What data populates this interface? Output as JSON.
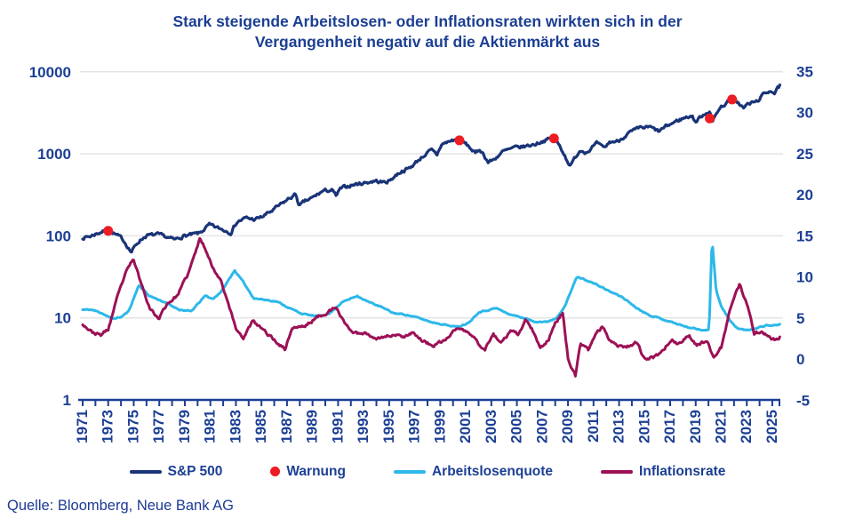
{
  "title": {
    "line1": "Stark steigende Arbeitslosen- oder Inflationsraten wirkten sich in der",
    "line2": "Vergangenheit negativ auf die Aktienmärkt aus"
  },
  "source": "Quelle: Bloomberg, Neue Bank AG",
  "colors": {
    "navy_text": "#1c3f94",
    "sp500_line": "#1a3478",
    "unemployment_line": "#2db8e9",
    "inflation_line": "#9c1156",
    "warning_dot": "#ee1c23",
    "gridline": "#e4e4e4"
  },
  "legend": {
    "items": [
      {
        "label": "S&P 500",
        "marker": "line",
        "color": "#1a3478"
      },
      {
        "label": "Warnung",
        "marker": "dot",
        "color": "#ee1c23"
      },
      {
        "label": "Arbeitslosenquote",
        "marker": "line",
        "color": "#2db8e9"
      },
      {
        "label": "Inflationsrate",
        "marker": "line",
        "color": "#9c1156"
      }
    ]
  },
  "chart_data": {
    "type": "line",
    "title": "Stark steigende Arbeitslosen- oder Inflationsraten wirkten sich in der Vergangenheit negativ auf die Aktienmärkt aus",
    "grid": "horizontal-on",
    "legend_position": "bottom",
    "left_axis": {
      "scale": "log",
      "ticks": [
        1,
        10,
        100,
        1000,
        10000
      ],
      "range": [
        1,
        10000
      ],
      "series": "S&P 500"
    },
    "right_axis": {
      "scale": "linear",
      "ticks": [
        -5,
        0,
        5,
        10,
        15,
        20,
        25,
        30,
        35
      ],
      "range": [
        -5,
        35
      ],
      "series": "Arbeitslosenquote / Inflationsrate (%)"
    },
    "x_axis": {
      "range": [
        1971,
        2025.6
      ],
      "minor_tick_every_years": 1,
      "labels": [
        "1971",
        "1973",
        "1975",
        "1977",
        "1979",
        "1981",
        "1983",
        "1985",
        "1987",
        "1989",
        "1991",
        "1993",
        "1995",
        "1997",
        "1999",
        "2001",
        "2003",
        "2005",
        "2007",
        "2009",
        "2011",
        "2013",
        "2015",
        "2017",
        "2019",
        "2021",
        "2023",
        "2025"
      ]
    },
    "series": [
      {
        "name": "S&P 500",
        "axis": "left-log",
        "color": "#1a3478",
        "points": [
          [
            1971.0,
            95
          ],
          [
            1971.6,
            99
          ],
          [
            1972.1,
            107
          ],
          [
            1972.95,
            118
          ],
          [
            1973.6,
            103
          ],
          [
            1974.1,
            92
          ],
          [
            1974.8,
            63
          ],
          [
            1975.4,
            86
          ],
          [
            1976.0,
            101
          ],
          [
            1976.9,
            103
          ],
          [
            1977.6,
            96
          ],
          [
            1978.2,
            89
          ],
          [
            1978.9,
            100
          ],
          [
            1979.6,
            103
          ],
          [
            1980.2,
            108
          ],
          [
            1980.9,
            135
          ],
          [
            1981.6,
            124
          ],
          [
            1982.6,
            110
          ],
          [
            1983.1,
            148
          ],
          [
            1983.8,
            165
          ],
          [
            1984.5,
            158
          ],
          [
            1985.1,
            172
          ],
          [
            1985.9,
            205
          ],
          [
            1986.6,
            245
          ],
          [
            1987.1,
            280
          ],
          [
            1987.7,
            320
          ],
          [
            1987.95,
            228
          ],
          [
            1988.4,
            262
          ],
          [
            1989.0,
            290
          ],
          [
            1989.8,
            350
          ],
          [
            1990.5,
            362
          ],
          [
            1990.85,
            305
          ],
          [
            1991.2,
            375
          ],
          [
            1992.0,
            415
          ],
          [
            1993.0,
            442
          ],
          [
            1993.9,
            468
          ],
          [
            1994.5,
            448
          ],
          [
            1995.0,
            468
          ],
          [
            1995.9,
            605
          ],
          [
            1996.6,
            670
          ],
          [
            1997.0,
            760
          ],
          [
            1997.7,
            950
          ],
          [
            1998.3,
            1100
          ],
          [
            1998.75,
            970
          ],
          [
            1999.1,
            1300
          ],
          [
            1999.95,
            1460
          ],
          [
            2000.25,
            1500
          ],
          [
            2000.9,
            1360
          ],
          [
            2001.3,
            1200
          ],
          [
            2001.75,
            1000
          ],
          [
            2002.1,
            1140
          ],
          [
            2002.75,
            790
          ],
          [
            2003.2,
            850
          ],
          [
            2003.9,
            1060
          ],
          [
            2004.8,
            1180
          ],
          [
            2005.5,
            1220
          ],
          [
            2006.4,
            1310
          ],
          [
            2007.0,
            1430
          ],
          [
            2007.8,
            1550
          ],
          [
            2008.3,
            1290
          ],
          [
            2008.85,
            880
          ],
          [
            2009.2,
            700
          ],
          [
            2009.95,
            1110
          ],
          [
            2010.5,
            1060
          ],
          [
            2011.3,
            1340
          ],
          [
            2011.8,
            1150
          ],
          [
            2012.3,
            1400
          ],
          [
            2012.9,
            1420
          ],
          [
            2013.8,
            1800
          ],
          [
            2014.7,
            2070
          ],
          [
            2015.4,
            2110
          ],
          [
            2016.1,
            1870
          ],
          [
            2016.9,
            2240
          ],
          [
            2017.9,
            2670
          ],
          [
            2018.7,
            2930
          ],
          [
            2018.98,
            2420
          ],
          [
            2019.6,
            3020
          ],
          [
            2020.13,
            3380
          ],
          [
            2020.27,
            2250
          ],
          [
            2020.7,
            3350
          ],
          [
            2021.4,
            4200
          ],
          [
            2021.97,
            4790
          ],
          [
            2022.4,
            4100
          ],
          [
            2022.75,
            3600
          ],
          [
            2023.1,
            4050
          ],
          [
            2023.8,
            4350
          ],
          [
            2024.2,
            5100
          ],
          [
            2024.9,
            6050
          ],
          [
            2025.15,
            5500
          ],
          [
            2025.45,
            6300
          ],
          [
            2025.6,
            6750
          ]
        ]
      },
      {
        "name": "Arbeitslosenquote",
        "axis": "right",
        "color": "#2db8e9",
        "points": [
          [
            1971.0,
            6.0
          ],
          [
            1971.7,
            6.0
          ],
          [
            1972.5,
            5.6
          ],
          [
            1973.3,
            4.9
          ],
          [
            1974.0,
            5.1
          ],
          [
            1974.6,
            5.8
          ],
          [
            1975.4,
            9.0
          ],
          [
            1976.2,
            7.7
          ],
          [
            1977.0,
            7.2
          ],
          [
            1977.8,
            6.6
          ],
          [
            1978.6,
            6.0
          ],
          [
            1979.5,
            5.8
          ],
          [
            1980.6,
            7.7
          ],
          [
            1981.2,
            7.3
          ],
          [
            1981.9,
            8.3
          ],
          [
            1982.9,
            10.8
          ],
          [
            1983.6,
            9.3
          ],
          [
            1984.4,
            7.4
          ],
          [
            1985.3,
            7.2
          ],
          [
            1986.2,
            7.0
          ],
          [
            1987.2,
            6.2
          ],
          [
            1988.2,
            5.5
          ],
          [
            1989.3,
            5.2
          ],
          [
            1990.3,
            5.5
          ],
          [
            1991.3,
            6.9
          ],
          [
            1992.5,
            7.7
          ],
          [
            1993.3,
            7.0
          ],
          [
            1994.3,
            6.4
          ],
          [
            1995.3,
            5.6
          ],
          [
            1996.3,
            5.4
          ],
          [
            1997.3,
            5.0
          ],
          [
            1998.3,
            4.5
          ],
          [
            1999.3,
            4.2
          ],
          [
            2000.3,
            3.9
          ],
          [
            2001.2,
            4.4
          ],
          [
            2002.0,
            5.7
          ],
          [
            2003.4,
            6.2
          ],
          [
            2004.3,
            5.5
          ],
          [
            2005.3,
            5.1
          ],
          [
            2006.3,
            4.6
          ],
          [
            2007.3,
            4.5
          ],
          [
            2008.1,
            5.0
          ],
          [
            2008.8,
            6.6
          ],
          [
            2009.7,
            10.0
          ],
          [
            2010.3,
            9.7
          ],
          [
            2011.3,
            9.0
          ],
          [
            2012.3,
            8.2
          ],
          [
            2013.3,
            7.5
          ],
          [
            2014.3,
            6.3
          ],
          [
            2015.3,
            5.4
          ],
          [
            2016.3,
            4.9
          ],
          [
            2017.3,
            4.4
          ],
          [
            2018.3,
            3.9
          ],
          [
            2019.3,
            3.6
          ],
          [
            2020.05,
            3.5
          ],
          [
            2020.28,
            14.7
          ],
          [
            2020.6,
            8.4
          ],
          [
            2021.0,
            6.4
          ],
          [
            2021.7,
            4.6
          ],
          [
            2022.3,
            3.7
          ],
          [
            2023.0,
            3.5
          ],
          [
            2023.8,
            3.8
          ],
          [
            2024.5,
            4.1
          ],
          [
            2025.0,
            4.1
          ],
          [
            2025.6,
            4.2
          ]
        ]
      },
      {
        "name": "Inflationsrate",
        "axis": "right",
        "color": "#9c1156",
        "points": [
          [
            1971.0,
            4.3
          ],
          [
            1971.7,
            3.3
          ],
          [
            1972.4,
            2.9
          ],
          [
            1973.0,
            3.6
          ],
          [
            1973.7,
            7.4
          ],
          [
            1974.3,
            10.2
          ],
          [
            1974.95,
            12.2
          ],
          [
            1975.6,
            9.1
          ],
          [
            1976.3,
            6.1
          ],
          [
            1976.95,
            4.9
          ],
          [
            1977.6,
            6.7
          ],
          [
            1978.4,
            7.7
          ],
          [
            1979.3,
            10.5
          ],
          [
            1980.2,
            14.7
          ],
          [
            1980.8,
            12.8
          ],
          [
            1981.2,
            11.0
          ],
          [
            1981.8,
            9.7
          ],
          [
            1982.4,
            6.8
          ],
          [
            1983.0,
            3.7
          ],
          [
            1983.6,
            2.6
          ],
          [
            1984.3,
            4.6
          ],
          [
            1985.1,
            3.6
          ],
          [
            1986.1,
            2.2
          ],
          [
            1986.85,
            1.2
          ],
          [
            1987.4,
            3.8
          ],
          [
            1988.4,
            4.0
          ],
          [
            1989.4,
            5.1
          ],
          [
            1990.8,
            6.2
          ],
          [
            1991.5,
            4.5
          ],
          [
            1992.2,
            3.1
          ],
          [
            1993.1,
            3.2
          ],
          [
            1994.1,
            2.5
          ],
          [
            1995.1,
            2.9
          ],
          [
            1996.2,
            2.8
          ],
          [
            1996.85,
            3.3
          ],
          [
            1997.6,
            2.2
          ],
          [
            1998.5,
            1.6
          ],
          [
            1999.4,
            2.3
          ],
          [
            2000.3,
            3.8
          ],
          [
            2000.95,
            3.4
          ],
          [
            2001.6,
            2.7
          ],
          [
            2001.95,
            1.9
          ],
          [
            2002.5,
            1.2
          ],
          [
            2003.15,
            3.0
          ],
          [
            2003.8,
            2.0
          ],
          [
            2004.5,
            3.3
          ],
          [
            2005.1,
            3.0
          ],
          [
            2005.7,
            4.7
          ],
          [
            2006.2,
            3.6
          ],
          [
            2006.8,
            1.3
          ],
          [
            2007.5,
            2.4
          ],
          [
            2007.95,
            4.3
          ],
          [
            2008.6,
            5.6
          ],
          [
            2009.0,
            0.1
          ],
          [
            2009.6,
            -2.1
          ],
          [
            2009.95,
            1.8
          ],
          [
            2010.6,
            1.1
          ],
          [
            2011.2,
            3.2
          ],
          [
            2011.7,
            3.9
          ],
          [
            2012.3,
            2.3
          ],
          [
            2012.9,
            1.7
          ],
          [
            2013.6,
            1.5
          ],
          [
            2014.4,
            2.1
          ],
          [
            2015.0,
            -0.1
          ],
          [
            2015.7,
            0.2
          ],
          [
            2016.5,
            1.1
          ],
          [
            2017.1,
            2.5
          ],
          [
            2017.6,
            1.7
          ],
          [
            2018.5,
            2.9
          ],
          [
            2019.1,
            1.6
          ],
          [
            2019.9,
            2.3
          ],
          [
            2020.4,
            0.2
          ],
          [
            2021.0,
            1.4
          ],
          [
            2021.6,
            5.4
          ],
          [
            2022.0,
            7.5
          ],
          [
            2022.45,
            9.1
          ],
          [
            2022.9,
            7.1
          ],
          [
            2023.3,
            5.0
          ],
          [
            2023.6,
            3.1
          ],
          [
            2024.2,
            3.4
          ],
          [
            2024.9,
            2.5
          ],
          [
            2025.3,
            2.3
          ],
          [
            2025.6,
            2.7
          ]
        ]
      }
    ],
    "warnings": {
      "name": "Warnung",
      "marker": "dot",
      "color": "#ee1c23",
      "axis": "left-log",
      "points": [
        [
          1973.0,
          115
        ],
        [
          2000.5,
          1460
        ],
        [
          2007.9,
          1540
        ],
        [
          2020.1,
          2700
        ],
        [
          2021.85,
          4600
        ]
      ]
    }
  }
}
